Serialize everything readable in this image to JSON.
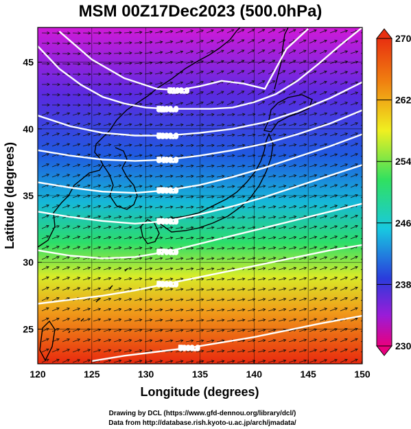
{
  "title": "MSM 00Z17Dec2023 (500.0hPa)",
  "axes": {
    "xlabel": "Longitude (degrees)",
    "ylabel": "Latitude  (degrees)",
    "xticks": [
      "120",
      "125",
      "130",
      "135",
      "140",
      "145",
      "150"
    ],
    "yticks": [
      "25",
      "30",
      "35",
      "40",
      "45"
    ],
    "xlim": [
      120,
      150
    ],
    "ylim": [
      22.4,
      47.6
    ]
  },
  "colorbar": {
    "labels": [
      "270",
      "262",
      "254",
      "246",
      "238",
      "230"
    ],
    "range": [
      230,
      270
    ],
    "colors": [
      "#e8007e",
      "#9a1cd8",
      "#2a3cdc",
      "#18c8e0",
      "#30e060",
      "#f0f020",
      "#f08010",
      "#e83010"
    ]
  },
  "contour_labels": [
    "5200.0",
    "5100.0",
    "5200.0",
    "5300.0",
    "5400.0",
    "5500.0",
    "5600.0",
    "5700.0",
    "5800.0",
    "5900.0"
  ],
  "credits": {
    "line1": "Drawing by DCL (https://www.gfd-dennou.org/library/dcl/)",
    "line2": "Data from http://database.rish.kyoto-u.ac.jp/arch/jmadata/"
  },
  "chart_data": {
    "type": "heatmap",
    "title": "MSM 00Z17Dec2023 (500.0hPa)",
    "xlabel": "Longitude (degrees)",
    "ylabel": "Latitude  (degrees)",
    "xlim": [
      120,
      150
    ],
    "ylim": [
      22.4,
      47.6
    ],
    "colorbar_range": [
      230,
      270
    ],
    "contours": [
      {
        "label": "5100.0",
        "lon": [
          122,
          125,
          128,
          131,
          133,
          135,
          137,
          139,
          141,
          143,
          145
        ],
        "lat": [
          47.3,
          45.2,
          43.8,
          43.0,
          42.9,
          43.2,
          43.6,
          43.4,
          43.0,
          46.0,
          47.5
        ]
      },
      {
        "label": "5200.0",
        "lon": [
          120,
          122,
          124,
          126,
          128,
          130,
          132,
          134,
          136,
          138,
          140,
          142,
          144,
          146,
          148,
          150
        ],
        "lat": [
          46.2,
          44.5,
          43.3,
          42.4,
          41.9,
          41.6,
          41.5,
          41.5,
          41.5,
          41.6,
          42.0,
          42.6,
          43.6,
          44.9,
          46.3,
          47.6
        ]
      },
      {
        "label": "5300.0",
        "lon": [
          120,
          123,
          126,
          129,
          132,
          135,
          138,
          141,
          144,
          147,
          150
        ],
        "lat": [
          41.0,
          40.2,
          39.7,
          39.5,
          39.5,
          39.7,
          40.0,
          40.5,
          41.3,
          42.3,
          43.5
        ]
      },
      {
        "label": "5400.0",
        "lon": [
          120,
          123,
          126,
          129,
          132,
          135,
          138,
          141,
          144,
          147,
          150
        ],
        "lat": [
          38.4,
          38.0,
          37.7,
          37.6,
          37.7,
          38.0,
          38.4,
          38.9,
          39.6,
          40.4,
          41.4
        ]
      },
      {
        "label": "5500.0",
        "lon": [
          120,
          123,
          126,
          129,
          132,
          135,
          138,
          141,
          144,
          147,
          150
        ],
        "lat": [
          36.0,
          35.6,
          35.3,
          35.2,
          35.4,
          35.8,
          36.4,
          37.1,
          37.9,
          38.7,
          39.6
        ]
      },
      {
        "label": "5600.0",
        "lon": [
          120,
          123,
          126,
          129,
          132,
          135,
          138,
          141,
          144,
          147,
          150
        ],
        "lat": [
          33.8,
          33.4,
          33.1,
          32.9,
          33.1,
          33.6,
          34.2,
          34.9,
          35.7,
          36.5,
          37.3
        ]
      },
      {
        "label": "5700.0",
        "lon": [
          120,
          123,
          126,
          129,
          132,
          135,
          138,
          141,
          144,
          147,
          150
        ],
        "lat": [
          30.9,
          30.5,
          30.3,
          30.4,
          30.8,
          31.4,
          32.0,
          32.6,
          33.2,
          33.8,
          34.4
        ]
      },
      {
        "label": "5800.0",
        "lon": [
          120,
          123,
          126,
          129,
          132,
          135,
          138,
          141,
          144,
          147,
          150
        ],
        "lat": [
          26.9,
          27.2,
          27.5,
          27.9,
          28.4,
          28.9,
          29.4,
          29.9,
          30.4,
          30.9,
          31.3
        ]
      },
      {
        "label": "5900.0",
        "lon": [
          125,
          128,
          131,
          134,
          137,
          140,
          143,
          146,
          150
        ],
        "lat": [
          22.6,
          23.0,
          23.3,
          23.6,
          24.0,
          24.4,
          24.9,
          25.4,
          26.0
        ]
      }
    ]
  }
}
